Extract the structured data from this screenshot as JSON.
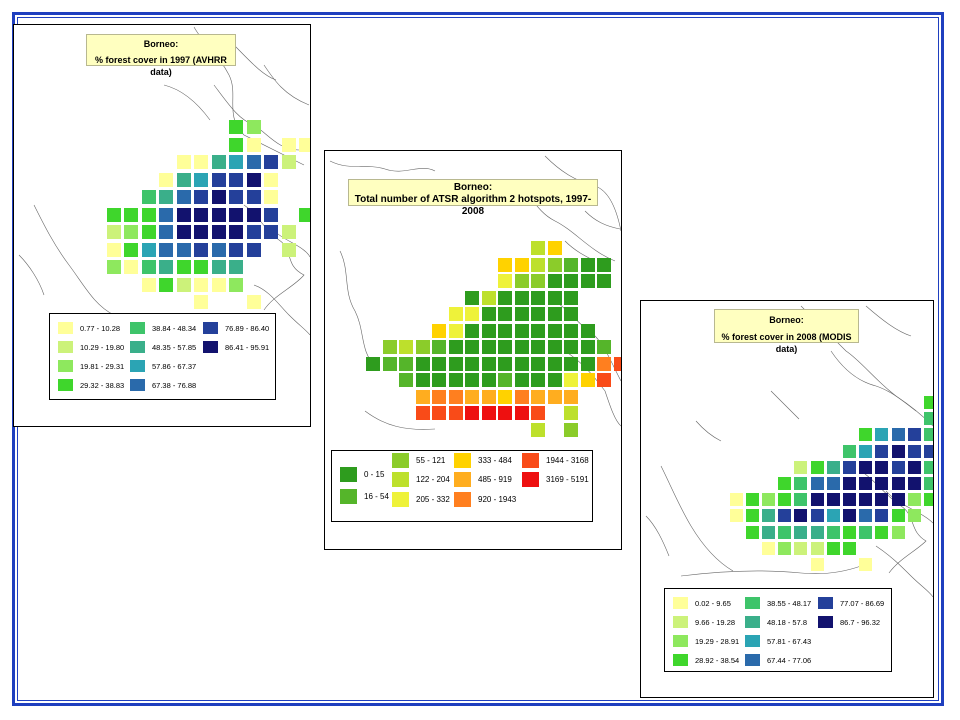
{
  "colors": {
    "frame": "#1f3fbf",
    "title_bg": "#ffffc0"
  },
  "panels": [
    {
      "id": "forest-1997",
      "title_line1": "Borneo:",
      "title_line2": "% forest cover in 1997 (AVHRR data)",
      "legend": [
        {
          "label": "0.77 - 10.28",
          "color": "#ffff99"
        },
        {
          "label": "10.29 - 19.80",
          "color": "#ccf27a"
        },
        {
          "label": "19.81 - 29.31",
          "color": "#8ee85e"
        },
        {
          "label": "29.32 - 38.83",
          "color": "#3fd62c"
        },
        {
          "label": "38.84 - 48.34",
          "color": "#3ec46a"
        },
        {
          "label": "48.35 - 57.85",
          "color": "#3aaf8a"
        },
        {
          "label": "57.86 - 67.37",
          "color": "#2ba4b4"
        },
        {
          "label": "67.38 - 76.88",
          "color": "#2a6aab"
        },
        {
          "label": "76.89 - 86.40",
          "color": "#24409a"
        },
        {
          "label": "86.41 - 95.91",
          "color": "#12126e"
        }
      ]
    },
    {
      "id": "hotspots-1997-2008",
      "title_line1": "Borneo:",
      "title_line2": "Total number of ATSR algorithm 2 hotspots, 1997-2008",
      "legend": [
        {
          "label": "0 - 15",
          "color": "#2e9c1e"
        },
        {
          "label": "16 - 54",
          "color": "#55b52a"
        },
        {
          "label": "55 - 121",
          "color": "#8bcc2a"
        },
        {
          "label": "122 - 204",
          "color": "#bde02c"
        },
        {
          "label": "205 - 332",
          "color": "#eef23a"
        },
        {
          "label": "333 - 484",
          "color": "#ffd200"
        },
        {
          "label": "485 - 919",
          "color": "#ffad1f"
        },
        {
          "label": "920 - 1943",
          "color": "#ff7f1f"
        },
        {
          "label": "1944 - 3168",
          "color": "#f94b18"
        },
        {
          "label": "3169 - 5191",
          "color": "#ee1010"
        }
      ]
    },
    {
      "id": "forest-2008",
      "title_line1": "Borneo:",
      "title_line2": "% forest cover in 2008 (MODIS data)",
      "legend": [
        {
          "label": "0.02 - 9.65",
          "color": "#ffff99"
        },
        {
          "label": "9.66 - 19.28",
          "color": "#ccf27a"
        },
        {
          "label": "19.29 - 28.91",
          "color": "#8ee85e"
        },
        {
          "label": "28.92 - 38.54",
          "color": "#3fd62c"
        },
        {
          "label": "38.55 - 48.17",
          "color": "#3ec46a"
        },
        {
          "label": "48.18 - 57.8",
          "color": "#3aaf8a"
        },
        {
          "label": "57.81 - 67.43",
          "color": "#2ba4b4"
        },
        {
          "label": "67.44 - 77.06",
          "color": "#2a6aab"
        },
        {
          "label": "77.07 - 86.69",
          "color": "#24409a"
        },
        {
          "label": "86.7 - 96.32",
          "color": "#12126e"
        }
      ]
    }
  ]
}
